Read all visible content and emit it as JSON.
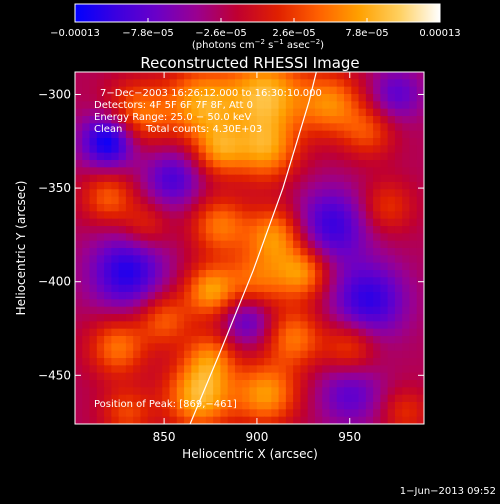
{
  "chart_data": {
    "type": "heatmap",
    "title": "Reconstructed RHESSI Image",
    "xlabel": "Heliocentric X (arcsec)",
    "ylabel": "Heliocentric Y (arcsec)",
    "xlim": [
      802,
      990
    ],
    "ylim": [
      -476,
      -288
    ],
    "x_ticks": [
      850,
      900,
      950
    ],
    "x_tick_labels": [
      "850",
      "900",
      "950"
    ],
    "y_ticks": [
      -300,
      -350,
      -400,
      -450
    ],
    "y_tick_labels": [
      "−300",
      "−350",
      "−400",
      "−450"
    ],
    "colorbar": {
      "range": [
        -0.00013,
        0.00013
      ],
      "tick_values": [
        -0.00013,
        -7.8e-05,
        -2.6e-05,
        2.6e-05,
        7.8e-05,
        0.00013
      ],
      "tick_labels": [
        "−0.00013",
        "−7.8e−05",
        "−2.6e−05",
        "2.6e−05",
        "7.8e−05",
        "0.00013"
      ],
      "units_prefix": "(photons cm",
      "units_sup1": "−2",
      "units_mid": " s",
      "units_sup2": "−1",
      "units_mid2": " asec",
      "units_sup3": "−2",
      "units_suffix": ")",
      "colors": [
        "#0000ff",
        "#3a00e0",
        "#6a00c8",
        "#9a0090",
        "#c00030",
        "#e02000",
        "#ff6000",
        "#ffa000",
        "#ffd060",
        "#ffffff"
      ]
    },
    "annotations": {
      "time": "7−Dec−2003 16:26:12.000 to 16:30:10.000",
      "detectors": "Detectors: 4F 5F 6F 7F 8F, Att 0",
      "energy": "Energy Range: 25.0 − 50.0 keV",
      "clean": "Clean",
      "counts": "Total counts: 4.30E+03",
      "peak": "Position of Peak: [869,−461]"
    },
    "limb_curve": [
      [
        864,
        -476
      ],
      [
        880,
        -438
      ],
      [
        898,
        -394
      ],
      [
        914,
        -350
      ],
      [
        928,
        -304
      ],
      [
        932,
        -288
      ]
    ],
    "sources": [
      {
        "x": 836,
        "y": -310,
        "amp": 0.7,
        "r": 12
      },
      {
        "x": 870,
        "y": -305,
        "amp": 0.9,
        "r": 14
      },
      {
        "x": 905,
        "y": -300,
        "amp": 1.0,
        "r": 15
      },
      {
        "x": 905,
        "y": -330,
        "amp": 0.8,
        "r": 12
      },
      {
        "x": 880,
        "y": -330,
        "amp": 0.7,
        "r": 10
      },
      {
        "x": 940,
        "y": -305,
        "amp": 0.75,
        "r": 12
      },
      {
        "x": 960,
        "y": -320,
        "amp": 0.5,
        "r": 10
      },
      {
        "x": 820,
        "y": -355,
        "amp": 0.6,
        "r": 10
      },
      {
        "x": 880,
        "y": -370,
        "amp": 0.7,
        "r": 11
      },
      {
        "x": 910,
        "y": -375,
        "amp": 0.8,
        "r": 11
      },
      {
        "x": 875,
        "y": -405,
        "amp": 0.85,
        "r": 10
      },
      {
        "x": 900,
        "y": -400,
        "amp": 0.65,
        "r": 12
      },
      {
        "x": 925,
        "y": -395,
        "amp": 0.8,
        "r": 10
      },
      {
        "x": 850,
        "y": -420,
        "amp": 0.6,
        "r": 10
      },
      {
        "x": 825,
        "y": -435,
        "amp": 0.7,
        "r": 11
      },
      {
        "x": 875,
        "y": -440,
        "amp": 0.6,
        "r": 10
      },
      {
        "x": 920,
        "y": -430,
        "amp": 0.7,
        "r": 11
      },
      {
        "x": 869,
        "y": -461,
        "amp": 1.0,
        "r": 13
      },
      {
        "x": 905,
        "y": -460,
        "amp": 0.85,
        "r": 12
      },
      {
        "x": 950,
        "y": -435,
        "amp": 0.55,
        "r": 10
      },
      {
        "x": 830,
        "y": -470,
        "amp": 0.5,
        "r": 10
      },
      {
        "x": 840,
        "y": -370,
        "amp": 0.4,
        "r": 9
      },
      {
        "x": 970,
        "y": -360,
        "amp": 0.45,
        "r": 10
      },
      {
        "x": 980,
        "y": -470,
        "amp": 0.4,
        "r": 9
      },
      {
        "x": 820,
        "y": -325,
        "amp": -1.0,
        "r": 10
      },
      {
        "x": 830,
        "y": -395,
        "amp": -0.8,
        "r": 14
      },
      {
        "x": 940,
        "y": -370,
        "amp": -0.7,
        "r": 14
      },
      {
        "x": 960,
        "y": -410,
        "amp": -0.75,
        "r": 14
      },
      {
        "x": 895,
        "y": -420,
        "amp": -0.6,
        "r": 10
      },
      {
        "x": 855,
        "y": -345,
        "amp": -0.6,
        "r": 11
      },
      {
        "x": 975,
        "y": -300,
        "amp": -0.5,
        "r": 10
      },
      {
        "x": 950,
        "y": -460,
        "amp": -0.5,
        "r": 12
      }
    ]
  },
  "footer": {
    "date": "1−Jun−2013 09:52"
  }
}
